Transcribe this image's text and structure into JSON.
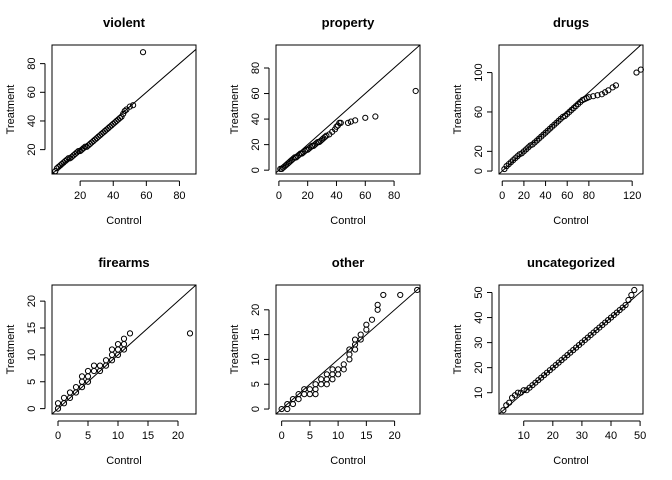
{
  "figure": {
    "xlabel": "Control",
    "ylabel": "Treatment"
  },
  "chart_data": [
    {
      "type": "scatter",
      "title": "violent",
      "xlabel": "Control",
      "ylabel": "Treatment",
      "xlim": [
        3,
        90
      ],
      "ylim": [
        3,
        93
      ],
      "xticks": [
        20,
        40,
        60,
        80
      ],
      "yticks": [
        20,
        40,
        60,
        80
      ],
      "grid": false,
      "reference_line": "y = x",
      "points": [
        [
          5,
          5
        ],
        [
          6,
          7
        ],
        [
          7,
          8
        ],
        [
          8,
          9
        ],
        [
          9,
          10
        ],
        [
          10,
          11
        ],
        [
          11,
          12
        ],
        [
          12,
          13
        ],
        [
          13,
          14
        ],
        [
          14,
          14
        ],
        [
          15,
          15
        ],
        [
          16,
          16
        ],
        [
          17,
          17
        ],
        [
          18,
          18
        ],
        [
          19,
          19
        ],
        [
          20,
          19
        ],
        [
          21,
          20
        ],
        [
          22,
          21
        ],
        [
          23,
          22
        ],
        [
          24,
          22
        ],
        [
          25,
          23
        ],
        [
          26,
          24
        ],
        [
          27,
          25
        ],
        [
          28,
          26
        ],
        [
          29,
          27
        ],
        [
          30,
          28
        ],
        [
          31,
          29
        ],
        [
          32,
          30
        ],
        [
          33,
          31
        ],
        [
          34,
          32
        ],
        [
          35,
          33
        ],
        [
          36,
          34
        ],
        [
          37,
          35
        ],
        [
          38,
          36
        ],
        [
          39,
          37
        ],
        [
          40,
          38
        ],
        [
          41,
          39
        ],
        [
          42,
          40
        ],
        [
          43,
          41
        ],
        [
          44,
          42
        ],
        [
          45,
          43
        ],
        [
          46,
          45
        ],
        [
          47,
          47
        ],
        [
          48,
          48
        ],
        [
          50,
          50
        ],
        [
          52,
          51
        ],
        [
          58,
          88
        ]
      ]
    },
    {
      "type": "scatter",
      "title": "property",
      "xlabel": "Control",
      "ylabel": "Treatment",
      "xlim": [
        -2,
        98
      ],
      "ylim": [
        -3,
        98
      ],
      "xticks": [
        0,
        20,
        40,
        60,
        80
      ],
      "yticks": [
        0,
        20,
        40,
        60,
        80
      ],
      "grid": false,
      "reference_line": "y = x",
      "points": [
        [
          1,
          1
        ],
        [
          2,
          1
        ],
        [
          3,
          2
        ],
        [
          4,
          3
        ],
        [
          5,
          4
        ],
        [
          6,
          5
        ],
        [
          7,
          6
        ],
        [
          8,
          7
        ],
        [
          9,
          8
        ],
        [
          10,
          9
        ],
        [
          11,
          10
        ],
        [
          12,
          10
        ],
        [
          13,
          11
        ],
        [
          14,
          12
        ],
        [
          15,
          13
        ],
        [
          16,
          13
        ],
        [
          17,
          14
        ],
        [
          18,
          15
        ],
        [
          19,
          16
        ],
        [
          20,
          16
        ],
        [
          21,
          17
        ],
        [
          22,
          18
        ],
        [
          23,
          19
        ],
        [
          24,
          19
        ],
        [
          25,
          20
        ],
        [
          26,
          21
        ],
        [
          27,
          22
        ],
        [
          28,
          22
        ],
        [
          29,
          23
        ],
        [
          30,
          24
        ],
        [
          31,
          25
        ],
        [
          32,
          26
        ],
        [
          33,
          27
        ],
        [
          35,
          28
        ],
        [
          37,
          30
        ],
        [
          39,
          32
        ],
        [
          40,
          34
        ],
        [
          41,
          35
        ],
        [
          42,
          37
        ],
        [
          43,
          37
        ],
        [
          48,
          37
        ],
        [
          50,
          38
        ],
        [
          53,
          39
        ],
        [
          60,
          41
        ],
        [
          67,
          42
        ],
        [
          95,
          62
        ]
      ]
    },
    {
      "type": "scatter",
      "title": "drugs",
      "xlabel": "Control",
      "ylabel": "Treatment",
      "xlim": [
        -3,
        130
      ],
      "ylim": [
        -3,
        128
      ],
      "xticks": [
        0,
        20,
        40,
        60,
        80,
        120
      ],
      "yticks": [
        0,
        20,
        60,
        100
      ],
      "grid": false,
      "reference_line": "y = x",
      "points": [
        [
          2,
          2
        ],
        [
          4,
          5
        ],
        [
          6,
          7
        ],
        [
          8,
          9
        ],
        [
          10,
          11
        ],
        [
          12,
          13
        ],
        [
          14,
          15
        ],
        [
          16,
          17
        ],
        [
          18,
          18
        ],
        [
          20,
          20
        ],
        [
          22,
          22
        ],
        [
          24,
          24
        ],
        [
          26,
          26
        ],
        [
          28,
          27
        ],
        [
          30,
          29
        ],
        [
          32,
          31
        ],
        [
          34,
          33
        ],
        [
          36,
          35
        ],
        [
          38,
          37
        ],
        [
          40,
          39
        ],
        [
          42,
          41
        ],
        [
          44,
          43
        ],
        [
          46,
          45
        ],
        [
          48,
          47
        ],
        [
          50,
          49
        ],
        [
          52,
          51
        ],
        [
          54,
          53
        ],
        [
          56,
          55
        ],
        [
          58,
          56
        ],
        [
          60,
          58
        ],
        [
          62,
          60
        ],
        [
          64,
          62
        ],
        [
          66,
          64
        ],
        [
          68,
          66
        ],
        [
          70,
          68
        ],
        [
          72,
          70
        ],
        [
          74,
          72
        ],
        [
          76,
          73
        ],
        [
          78,
          74
        ],
        [
          80,
          75
        ],
        [
          84,
          76
        ],
        [
          88,
          77
        ],
        [
          92,
          78
        ],
        [
          95,
          80
        ],
        [
          98,
          82
        ],
        [
          102,
          85
        ],
        [
          105,
          87
        ],
        [
          124,
          100
        ],
        [
          128,
          103
        ]
      ]
    },
    {
      "type": "scatter",
      "title": "firearms",
      "xlabel": "Control",
      "ylabel": "Treatment",
      "xlim": [
        -1,
        23
      ],
      "ylim": [
        -1,
        23
      ],
      "xticks": [
        0,
        5,
        10,
        15,
        20
      ],
      "yticks": [
        0,
        5,
        10,
        15,
        20
      ],
      "grid": false,
      "reference_line": "y = x",
      "points": [
        [
          0,
          0
        ],
        [
          0,
          1
        ],
        [
          1,
          1
        ],
        [
          1,
          2
        ],
        [
          2,
          2
        ],
        [
          2,
          3
        ],
        [
          3,
          3
        ],
        [
          3,
          4
        ],
        [
          4,
          4
        ],
        [
          4,
          5
        ],
        [
          4,
          6
        ],
        [
          5,
          5
        ],
        [
          5,
          6
        ],
        [
          5,
          7
        ],
        [
          6,
          7
        ],
        [
          6,
          8
        ],
        [
          7,
          7
        ],
        [
          7,
          8
        ],
        [
          8,
          8
        ],
        [
          8,
          9
        ],
        [
          9,
          9
        ],
        [
          9,
          10
        ],
        [
          9,
          11
        ],
        [
          10,
          10
        ],
        [
          10,
          11
        ],
        [
          10,
          12
        ],
        [
          11,
          11
        ],
        [
          11,
          12
        ],
        [
          11,
          13
        ],
        [
          12,
          14
        ],
        [
          22,
          14
        ]
      ]
    },
    {
      "type": "scatter",
      "title": "other",
      "xlabel": "Control",
      "ylabel": "Treatment",
      "xlim": [
        -1,
        24.5
      ],
      "ylim": [
        -1,
        25
      ],
      "xticks": [
        0,
        5,
        10,
        15,
        20
      ],
      "yticks": [
        0,
        5,
        10,
        15,
        20
      ],
      "grid": false,
      "reference_line": "y = x",
      "points": [
        [
          0,
          0
        ],
        [
          1,
          0
        ],
        [
          1,
          1
        ],
        [
          2,
          1
        ],
        [
          2,
          2
        ],
        [
          3,
          2
        ],
        [
          3,
          3
        ],
        [
          4,
          3
        ],
        [
          4,
          4
        ],
        [
          5,
          3
        ],
        [
          5,
          4
        ],
        [
          6,
          3
        ],
        [
          6,
          4
        ],
        [
          6,
          5
        ],
        [
          7,
          5
        ],
        [
          7,
          6
        ],
        [
          8,
          5
        ],
        [
          8,
          6
        ],
        [
          8,
          7
        ],
        [
          9,
          6
        ],
        [
          9,
          7
        ],
        [
          9,
          8
        ],
        [
          10,
          7
        ],
        [
          10,
          8
        ],
        [
          11,
          8
        ],
        [
          11,
          9
        ],
        [
          12,
          10
        ],
        [
          12,
          11
        ],
        [
          12,
          12
        ],
        [
          13,
          12
        ],
        [
          13,
          13
        ],
        [
          13,
          14
        ],
        [
          14,
          14
        ],
        [
          14,
          15
        ],
        [
          15,
          16
        ],
        [
          15,
          17
        ],
        [
          16,
          18
        ],
        [
          17,
          20
        ],
        [
          17,
          21
        ],
        [
          18,
          23
        ],
        [
          21,
          23
        ],
        [
          24,
          24
        ]
      ]
    },
    {
      "type": "scatter",
      "title": "uncategorized",
      "xlabel": "Control",
      "ylabel": "Treatment",
      "xlim": [
        1.5,
        51
      ],
      "ylim": [
        1.5,
        53
      ],
      "xticks": [
        10,
        20,
        30,
        40,
        50
      ],
      "yticks": [
        10,
        20,
        30,
        40,
        50
      ],
      "grid": false,
      "reference_line": "y = x",
      "points": [
        [
          3,
          3
        ],
        [
          4,
          5
        ],
        [
          5,
          6
        ],
        [
          6,
          8
        ],
        [
          7,
          9
        ],
        [
          8,
          10
        ],
        [
          9,
          10
        ],
        [
          10,
          11
        ],
        [
          11,
          11
        ],
        [
          12,
          12
        ],
        [
          13,
          13
        ],
        [
          14,
          14
        ],
        [
          15,
          15
        ],
        [
          16,
          16
        ],
        [
          17,
          17
        ],
        [
          18,
          18
        ],
        [
          19,
          19
        ],
        [
          20,
          20
        ],
        [
          21,
          21
        ],
        [
          22,
          22
        ],
        [
          23,
          23
        ],
        [
          24,
          24
        ],
        [
          25,
          25
        ],
        [
          26,
          26
        ],
        [
          27,
          27
        ],
        [
          28,
          28
        ],
        [
          29,
          29
        ],
        [
          30,
          30
        ],
        [
          31,
          31
        ],
        [
          32,
          32
        ],
        [
          33,
          33
        ],
        [
          34,
          34
        ],
        [
          35,
          35
        ],
        [
          36,
          36
        ],
        [
          37,
          37
        ],
        [
          38,
          38
        ],
        [
          39,
          39
        ],
        [
          40,
          40
        ],
        [
          41,
          41
        ],
        [
          42,
          42
        ],
        [
          43,
          43
        ],
        [
          44,
          44
        ],
        [
          45,
          45
        ],
        [
          46,
          47
        ],
        [
          47,
          49
        ],
        [
          48,
          51
        ]
      ]
    }
  ]
}
